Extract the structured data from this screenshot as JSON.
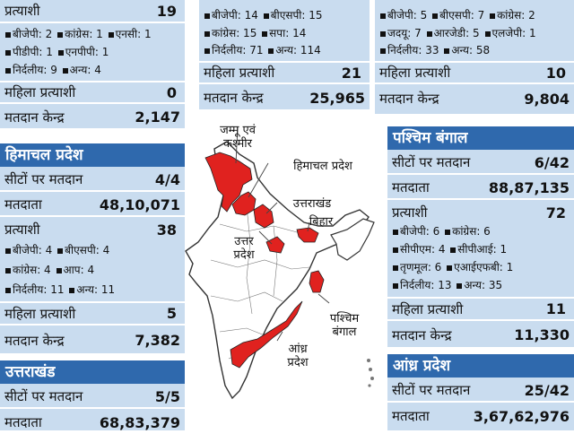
{
  "col1_top": {
    "candidates_label": "प्रत्याशी",
    "candidates_value": "19",
    "parties_rows": [
      [
        "बीजेपी: 2",
        "कांग्रेस: 1",
        "एनसी: 1"
      ],
      [
        "पीडीपी: 1",
        "एनपीपी: 1"
      ],
      [
        "निर्दलीय: 9",
        "अन्य: 4"
      ]
    ],
    "women_label": "महिला प्रत्याशी",
    "women_value": "0",
    "booths_label": "मतदान केन्द्र",
    "booths_value": "2,147"
  },
  "col2_top": {
    "parties_rows": [
      [
        "बीजेपी: 14",
        "बीएसपी: 15"
      ],
      [
        "कांग्रेस: 15",
        "सपा: 14"
      ],
      [
        "निर्दलीय: 71",
        "अन्य: 114"
      ]
    ],
    "women_label": "महिला प्रत्याशी",
    "women_value": "21",
    "booths_label": "मतदान केन्द्र",
    "booths_value": "25,965"
  },
  "col3_top": {
    "parties_rows": [
      [
        "बीजेपी: 5",
        "बीएसपी: 7",
        "कांग्रेस: 2"
      ],
      [
        "जदयू: 7",
        "आरजेडी: 5",
        "एलजेपी: 1"
      ],
      [
        "निर्दलीय: 33",
        "अन्य: 58"
      ]
    ],
    "women_label": "महिला प्रत्याशी",
    "women_value": "10",
    "booths_label": "मतदान केन्द्र",
    "booths_value": "9,804"
  },
  "himachal": {
    "title": "हिमाचल प्रदेश",
    "seats_label": "सीटों पर मतदान",
    "seats_value": "4/4",
    "voters_label": "मतदाता",
    "voters_value": "48,10,071",
    "candidates_label": "प्रत्याशी",
    "candidates_value": "38",
    "parties_rows": [
      [
        "बीजेपी: 4",
        "बीएसपी: 4"
      ],
      [
        "कांग्रेस: 4",
        "आप: 4"
      ],
      [
        "निर्दलीय: 11",
        "अन्य: 11"
      ]
    ],
    "women_label": "महिला प्रत्याशी",
    "women_value": "5",
    "booths_label": "मतदान केन्द्र",
    "booths_value": "7,382"
  },
  "uttarakhand": {
    "title": "उत्तराखंड",
    "seats_label": "सीटों पर मतदान",
    "seats_value": "5/5",
    "voters_label": "मतदाता",
    "voters_value": "68,83,379"
  },
  "bengal": {
    "title": "पश्चिम बंगाल",
    "seats_label": "सीटों पर मतदान",
    "seats_value": "6/42",
    "voters_label": "मतदाता",
    "voters_value": "88,87,135",
    "candidates_label": "प्रत्याशी",
    "candidates_value": "72",
    "parties_rows": [
      [
        "बीजेपी: 6",
        "कांग्रेस: 6"
      ],
      [
        "सीपीएम: 4",
        "सीपीआई: 1"
      ],
      [
        "तृणमूल: 6",
        "एआईएफबी: 1"
      ],
      [
        "निर्दलीय: 13",
        "अन्य: 35"
      ]
    ],
    "women_label": "महिला प्रत्याशी",
    "women_value": "11",
    "booths_label": "मतदान केन्द्र",
    "booths_value": "11,330"
  },
  "andhra": {
    "title": "आंध्र प्रदेश",
    "seats_label": "सीटों पर मतदान",
    "seats_value": "25/42",
    "voters_label": "मतदाता",
    "voters_value": "3,67,62,976"
  },
  "map_labels": {
    "jk": "जम्मू एवं कश्मीर",
    "hp": "हिमाचल प्रदेश",
    "uk": "उत्तराखंड",
    "bihar": "बिहार",
    "up": "उत्तर प्रदेश",
    "wb": "पश्चिम बंगाल",
    "ap": "आंध्र प्रदेश"
  },
  "colors": {
    "header": "#2f69ad",
    "panel": "#c9dcef",
    "highlight": "#e0221f"
  }
}
